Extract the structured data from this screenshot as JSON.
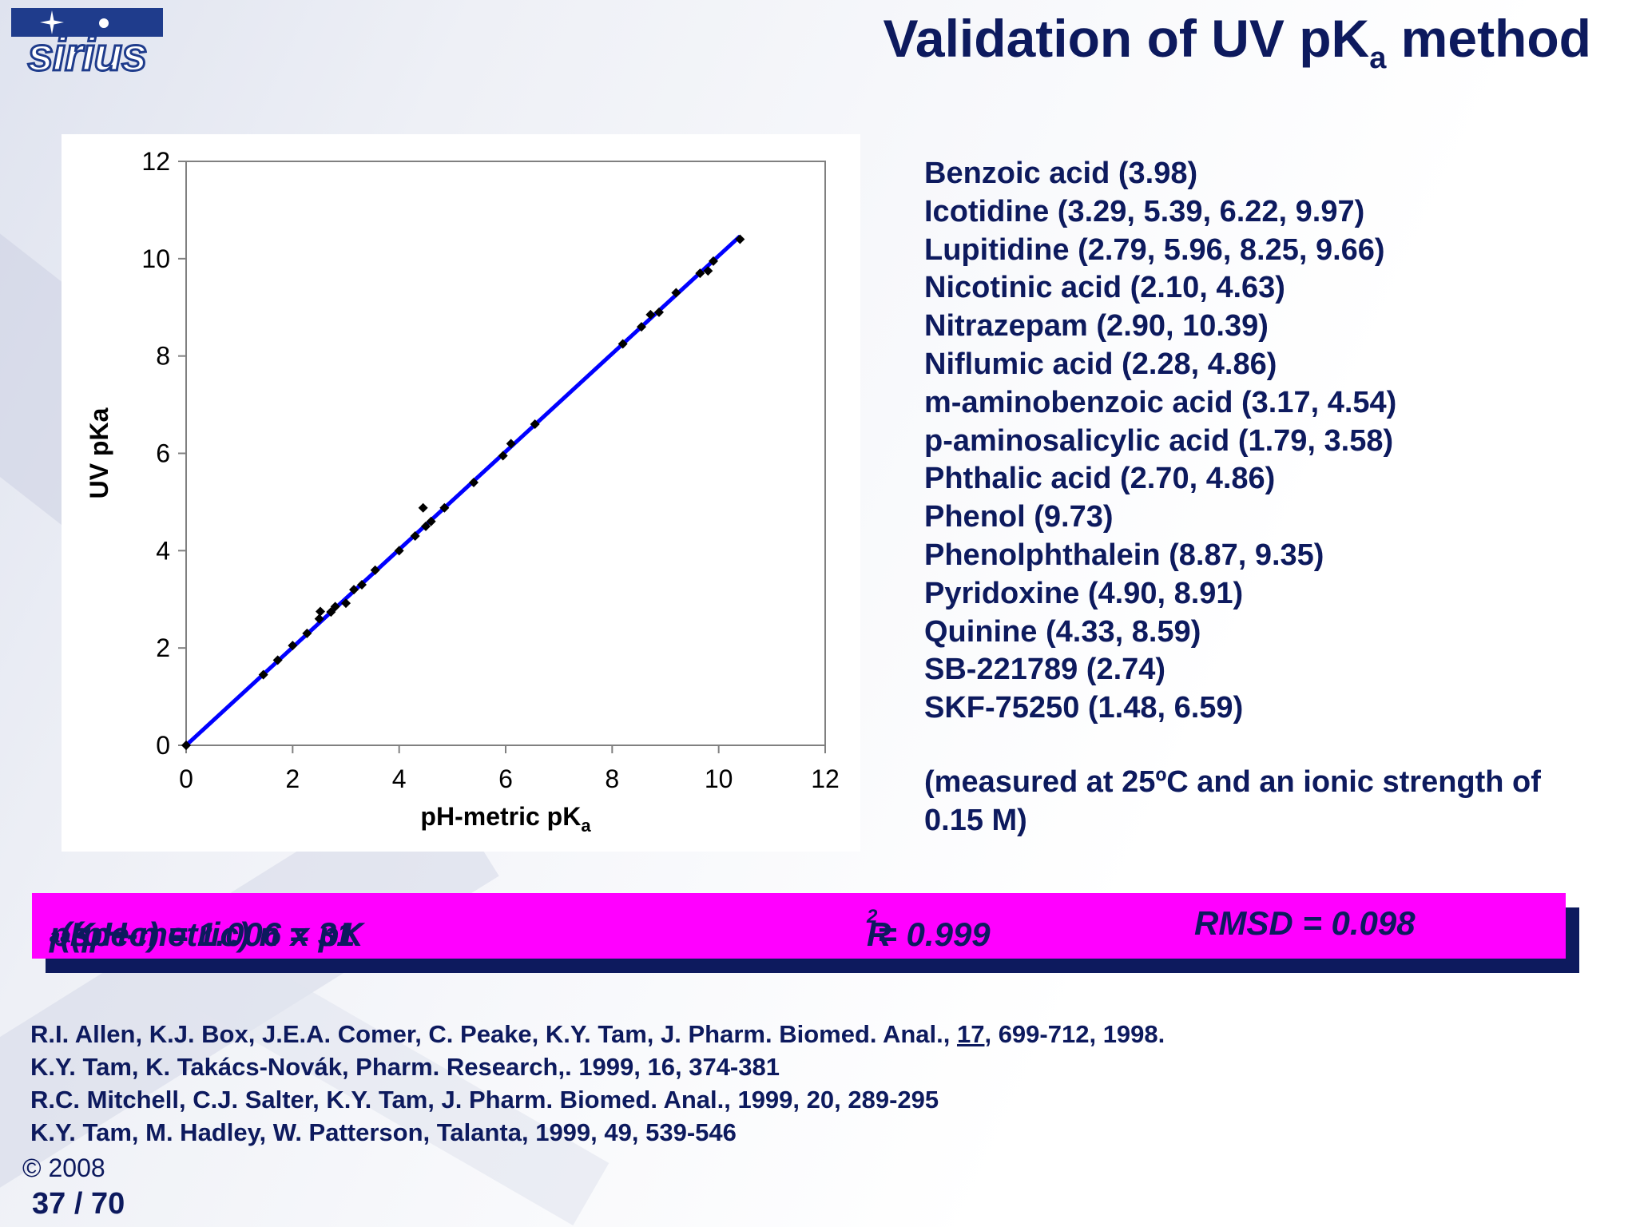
{
  "logo": {
    "text": "sirius"
  },
  "title": {
    "main": "Validation of UV pK",
    "sub": "a",
    "tail": " method"
  },
  "chart_data": {
    "type": "scatter",
    "xlabel_main": "pH-metric pK",
    "xlabel_sub": "a",
    "ylabel": "UV pKa",
    "xlim": [
      0,
      12
    ],
    "ylim": [
      0,
      12
    ],
    "xticks": [
      "0",
      "2",
      "4",
      "6",
      "8",
      "10",
      "12"
    ],
    "yticks": [
      "0",
      "2",
      "4",
      "6",
      "8",
      "10",
      "12"
    ],
    "grid": false,
    "legend": "none",
    "points": [
      [
        0,
        0
      ],
      [
        1.45,
        1.45
      ],
      [
        1.72,
        1.75
      ],
      [
        2.0,
        2.05
      ],
      [
        2.27,
        2.3
      ],
      [
        2.5,
        2.6
      ],
      [
        2.52,
        2.75
      ],
      [
        2.72,
        2.74
      ],
      [
        2.8,
        2.85
      ],
      [
        3.0,
        2.92
      ],
      [
        3.15,
        3.2
      ],
      [
        3.3,
        3.3
      ],
      [
        3.55,
        3.6
      ],
      [
        4.0,
        4.0
      ],
      [
        4.3,
        4.3
      ],
      [
        4.45,
        4.88
      ],
      [
        4.5,
        4.5
      ],
      [
        4.6,
        4.6
      ],
      [
        4.85,
        4.88
      ],
      [
        5.4,
        5.4
      ],
      [
        5.95,
        5.95
      ],
      [
        6.1,
        6.2
      ],
      [
        6.55,
        6.6
      ],
      [
        8.2,
        8.25
      ],
      [
        8.55,
        8.6
      ],
      [
        8.72,
        8.85
      ],
      [
        8.88,
        8.9
      ],
      [
        9.2,
        9.3
      ],
      [
        9.65,
        9.7
      ],
      [
        9.8,
        9.75
      ],
      [
        9.9,
        9.95
      ],
      [
        10.4,
        10.4
      ]
    ],
    "fit_line": {
      "slope": 1.006,
      "x": [
        0,
        10.4
      ]
    },
    "colors": {
      "line": "#0000ff",
      "points": "#000000",
      "axis": "#808080"
    }
  },
  "compounds": [
    "Benzoic acid (3.98)",
    "Icotidine (3.29, 5.39, 6.22, 9.97)",
    "Lupitidine (2.79, 5.96, 8.25, 9.66)",
    "Nicotinic acid (2.10, 4.63)",
    "Nitrazepam (2.90, 10.39)",
    "Niflumic acid (2.28, 4.86)",
    "m-aminobenzoic acid (3.17, 4.54)",
    "p-aminosalicylic acid (1.79, 3.58)",
    "Phthalic acid (2.70, 4.86)",
    "Phenol (9.73)",
    "Phenolphthalein (8.87, 9.35)",
    "Pyridoxine (4.90, 8.91)",
    "Quinine (4.33, 8.59)",
    "SB-221789 (2.74)",
    "SKF-75250 (1.48, 6.59)"
  ],
  "measured_note": "(measured at 25ºC and an ionic strength of 0.15 M)",
  "banner": {
    "p1": "pK",
    "s1": "a",
    "p2": " (spec) = 1.006 x pK",
    "s2": "a",
    "p3": " (pH-metric) n = 31",
    "r_pre": "R",
    "r_sup": "2",
    "r_post": " = 0.999",
    "rmsd": "RMSD = 0.098",
    "color": "#ff00ff"
  },
  "references": {
    "r1_pre": "R.I. Allen, K.J. Box, J.E.A. Comer, C. Peake, K.Y. Tam, J. Pharm. Biomed. Anal., ",
    "r1_vol": "17",
    "r1_post": ", 699-712, 1998.",
    "r2": "K.Y. Tam, K. Takács-Novák, Pharm. Research,. 1999, 16, 374-381",
    "r3": "R.C. Mitchell, C.J. Salter, K.Y. Tam, J. Pharm. Biomed. Anal., 1999, 20, 289-295",
    "r4": "K.Y. Tam, M. Hadley, W. Patterson, Talanta, 1999, 49, 539-546"
  },
  "footer": {
    "copyright": "© 2008",
    "page": "37 / 70"
  }
}
